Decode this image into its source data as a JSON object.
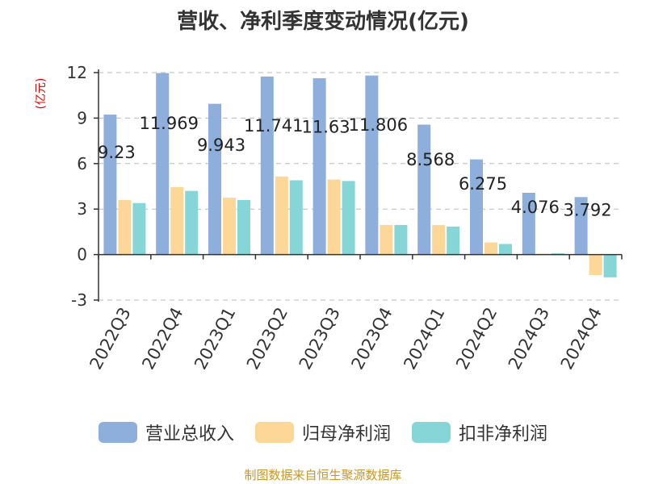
{
  "chart_data": {
    "type": "bar",
    "title": "营收、净利季度变动情况(亿元)",
    "ylabel": "(亿元)",
    "xlabel": "",
    "ylim": [
      -3,
      12
    ],
    "yticks": [
      -3,
      0,
      3,
      6,
      9,
      12
    ],
    "grid": true,
    "legend_position": "bottom",
    "categories": [
      "2022Q3",
      "2022Q4",
      "2023Q1",
      "2023Q2",
      "2023Q3",
      "2023Q4",
      "2024Q1",
      "2024Q2",
      "2024Q3",
      "2024Q4"
    ],
    "series": [
      {
        "name": "营业总收入",
        "color": "#8eaedc",
        "values": [
          9.23,
          11.969,
          9.943,
          11.741,
          11.63,
          11.806,
          8.568,
          6.275,
          4.076,
          3.792
        ],
        "labels": [
          "9.23",
          "11.969",
          "9.943",
          "11.741",
          "11.63",
          "11.806",
          "8.568",
          "6.275",
          "4.076",
          "3.792"
        ]
      },
      {
        "name": "归母净利润",
        "color": "#fdd797",
        "values": [
          3.6,
          4.45,
          3.75,
          5.15,
          4.95,
          1.95,
          1.95,
          0.8,
          0.05,
          -1.35
        ]
      },
      {
        "name": "扣非净利润",
        "color": "#86d5d7",
        "values": [
          3.4,
          4.2,
          3.6,
          4.9,
          4.85,
          1.95,
          1.85,
          0.7,
          0.08,
          -1.5
        ]
      }
    ]
  },
  "footer": {
    "source": "制图数据来自恒生聚源数据库"
  }
}
